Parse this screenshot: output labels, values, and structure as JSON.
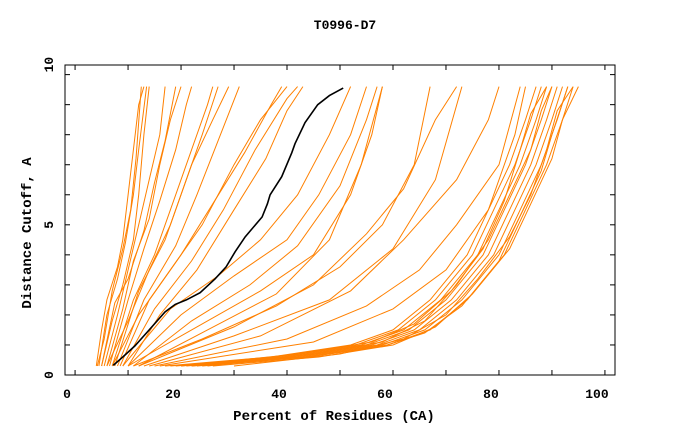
{
  "chart_data": {
    "type": "line",
    "title": "T0996-D7",
    "xlabel": "Percent of Residues (CA)",
    "ylabel": "Distance Cutoff, A",
    "xlim": [
      -1.9,
      101.9
    ],
    "ylim": [
      0,
      10.32
    ],
    "xticks": [
      0,
      20,
      40,
      60,
      80,
      100
    ],
    "xminor": [
      0,
      10,
      20,
      30,
      40,
      50,
      60,
      70,
      80,
      90,
      100
    ],
    "yticks": [
      0,
      5,
      10
    ],
    "yminor": [
      0,
      1,
      2,
      3,
      4,
      5,
      6,
      7,
      8,
      9,
      10
    ],
    "grid": false,
    "colors": {
      "models": "#ff8000",
      "highlight": "#000000"
    },
    "highlight": {
      "name": "highlighted model",
      "points": [
        [
          7.2,
          0.32
        ],
        [
          9,
          0.6
        ],
        [
          11.3,
          0.97
        ],
        [
          14,
          1.5
        ],
        [
          17,
          2.1
        ],
        [
          18.9,
          2.35
        ],
        [
          21,
          2.5
        ],
        [
          23.6,
          2.74
        ],
        [
          26.4,
          3.2
        ],
        [
          28.5,
          3.6
        ],
        [
          30.2,
          4.1
        ],
        [
          32.1,
          4.6
        ],
        [
          35.3,
          5.26
        ],
        [
          36.3,
          5.7
        ],
        [
          36.8,
          6.0
        ],
        [
          39,
          6.6
        ],
        [
          40.9,
          7.4
        ],
        [
          41.5,
          7.7
        ],
        [
          43.4,
          8.4
        ],
        [
          45.8,
          9.0
        ],
        [
          48,
          9.3
        ],
        [
          50.6,
          9.55
        ]
      ]
    },
    "series": [
      [
        [
          4,
          0.3
        ],
        [
          5,
          1.5
        ],
        [
          6,
          2.5
        ],
        [
          8,
          3.6
        ],
        [
          9,
          4.5
        ],
        [
          10,
          6
        ],
        [
          11,
          7.5
        ],
        [
          12,
          9
        ],
        [
          13,
          9.6
        ]
      ],
      [
        [
          4.5,
          0.3
        ],
        [
          6,
          2
        ],
        [
          8,
          3.2
        ],
        [
          9.5,
          4.4
        ],
        [
          11,
          6
        ],
        [
          12,
          7.5
        ],
        [
          13.5,
          9.6
        ]
      ],
      [
        [
          5,
          0.3
        ],
        [
          7,
          1.8
        ],
        [
          9,
          3
        ],
        [
          11,
          4.5
        ],
        [
          12,
          6
        ],
        [
          13,
          8
        ],
        [
          14,
          9.6
        ]
      ],
      [
        [
          5.5,
          0.3
        ],
        [
          8,
          2
        ],
        [
          10,
          3.5
        ],
        [
          12,
          5
        ],
        [
          14,
          6.5
        ],
        [
          16,
          8
        ],
        [
          17,
          9.6
        ]
      ],
      [
        [
          6,
          0.3
        ],
        [
          9,
          2.2
        ],
        [
          11,
          3.8
        ],
        [
          14,
          5.2
        ],
        [
          16,
          7
        ],
        [
          18,
          8.5
        ],
        [
          20,
          9.6
        ]
      ],
      [
        [
          6.5,
          0.3
        ],
        [
          10,
          2.5
        ],
        [
          13,
          4.2
        ],
        [
          16,
          5.8
        ],
        [
          19,
          7.5
        ],
        [
          21,
          9
        ],
        [
          22,
          9.6
        ]
      ],
      [
        [
          7,
          0.3
        ],
        [
          11,
          2.5
        ],
        [
          15,
          4
        ],
        [
          19,
          6
        ],
        [
          22,
          7.5
        ],
        [
          25,
          9
        ],
        [
          26,
          9.6
        ]
      ],
      [
        [
          7.5,
          0.3
        ],
        [
          12,
          2.8
        ],
        [
          17,
          4.5
        ],
        [
          21,
          6.5
        ],
        [
          24,
          8
        ],
        [
          27,
          9.6
        ]
      ],
      [
        [
          6,
          0.3
        ],
        [
          10,
          1.8
        ],
        [
          14,
          3.5
        ],
        [
          18,
          5
        ],
        [
          22,
          7
        ],
        [
          26,
          8.5
        ],
        [
          29,
          9.6
        ]
      ],
      [
        [
          8,
          0.3
        ],
        [
          13,
          2.5
        ],
        [
          19,
          4.3
        ],
        [
          23,
          6
        ],
        [
          27,
          7.8
        ],
        [
          31,
          9.6
        ]
      ],
      [
        [
          8.5,
          0.3
        ],
        [
          14,
          2.5
        ],
        [
          20,
          4
        ],
        [
          26,
          5.7
        ],
        [
          32,
          7.4
        ],
        [
          37,
          9
        ],
        [
          39,
          9.6
        ]
      ],
      [
        [
          9,
          0.3
        ],
        [
          15,
          2.2
        ],
        [
          22,
          3.8
        ],
        [
          28,
          5.5
        ],
        [
          34,
          7.5
        ],
        [
          40,
          9.2
        ],
        [
          42,
          9.6
        ]
      ],
      [
        [
          7,
          0.3
        ],
        [
          12,
          2
        ],
        [
          18,
          3.5
        ],
        [
          24,
          5
        ],
        [
          30,
          7
        ],
        [
          35,
          8.5
        ],
        [
          40,
          9.6
        ]
      ],
      [
        [
          10,
          0.3
        ],
        [
          16,
          2
        ],
        [
          23,
          3.5
        ],
        [
          30,
          5.5
        ],
        [
          36,
          7.2
        ],
        [
          40,
          8.8
        ],
        [
          43,
          9.6
        ]
      ],
      [
        [
          4.2,
          0.3
        ],
        [
          5.5,
          1.2
        ],
        [
          7,
          2.8
        ],
        [
          9,
          4.2
        ],
        [
          10.5,
          5.5
        ],
        [
          11.5,
          7.2
        ],
        [
          12.5,
          9.6
        ]
      ],
      [
        [
          5,
          0.3
        ],
        [
          7.5,
          2.4
        ],
        [
          10,
          3.2
        ],
        [
          13,
          4.8
        ],
        [
          15,
          6.4
        ],
        [
          17,
          7.8
        ],
        [
          19,
          9.6
        ]
      ],
      [
        [
          9,
          0.3
        ],
        [
          18,
          2.2
        ],
        [
          27,
          3.3
        ],
        [
          35,
          4.5
        ],
        [
          42,
          6
        ],
        [
          48,
          8
        ],
        [
          52,
          9.6
        ]
      ],
      [
        [
          10,
          0.3
        ],
        [
          20,
          2
        ],
        [
          30,
          3.3
        ],
        [
          40,
          4.5
        ],
        [
          46,
          6
        ],
        [
          52,
          8
        ],
        [
          55,
          9.6
        ]
      ],
      [
        [
          11,
          0.3
        ],
        [
          22,
          1.8
        ],
        [
          33,
          3
        ],
        [
          42,
          4.3
        ],
        [
          50,
          6.3
        ],
        [
          55,
          8.5
        ],
        [
          57,
          9.6
        ]
      ],
      [
        [
          10,
          0.3
        ],
        [
          22,
          1.5
        ],
        [
          35,
          2.8
        ],
        [
          45,
          4
        ],
        [
          52,
          6
        ],
        [
          56,
          8
        ],
        [
          58,
          9.6
        ]
      ],
      [
        [
          12,
          0.3
        ],
        [
          25,
          1.5
        ],
        [
          38,
          2.7
        ],
        [
          48,
          4.5
        ],
        [
          54,
          7
        ],
        [
          58,
          9.6
        ]
      ],
      [
        [
          11,
          0.3
        ],
        [
          24,
          1.2
        ],
        [
          38,
          2.3
        ],
        [
          50,
          3.6
        ],
        [
          58,
          5
        ],
        [
          64,
          7
        ],
        [
          67,
          9.6
        ]
      ],
      [
        [
          12,
          0.3
        ],
        [
          30,
          1.6
        ],
        [
          45,
          3
        ],
        [
          55,
          4.7
        ],
        [
          62,
          6.2
        ],
        [
          68,
          8.5
        ],
        [
          72,
          9.6
        ]
      ],
      [
        [
          13,
          0.3
        ],
        [
          30,
          1.3
        ],
        [
          48,
          2.5
        ],
        [
          60,
          4.2
        ],
        [
          68,
          6.5
        ],
        [
          73,
          9.6
        ]
      ],
      [
        [
          15,
          0.3
        ],
        [
          40,
          1.2
        ],
        [
          55,
          2.3
        ],
        [
          65,
          3.5
        ],
        [
          72,
          5
        ],
        [
          80,
          7
        ],
        [
          84,
          9.6
        ]
      ],
      [
        [
          16,
          0.3
        ],
        [
          45,
          1.1
        ],
        [
          60,
          2.2
        ],
        [
          70,
          3.5
        ],
        [
          78,
          5.5
        ],
        [
          83,
          8
        ],
        [
          85,
          9.6
        ]
      ],
      [
        [
          14,
          0.3
        ],
        [
          35,
          1.3
        ],
        [
          52,
          2.8
        ],
        [
          62,
          4.5
        ],
        [
          72,
          6.5
        ],
        [
          78,
          8.5
        ],
        [
          80,
          9.6
        ]
      ],
      [
        [
          17,
          0.3
        ],
        [
          37,
          0.6
        ],
        [
          52,
          1
        ],
        [
          60,
          1.5
        ],
        [
          67,
          2.5
        ],
        [
          74,
          4
        ],
        [
          78,
          5.5
        ],
        [
          82,
          7
        ],
        [
          85,
          8.5
        ],
        [
          87,
          9.6
        ]
      ],
      [
        [
          18,
          0.3
        ],
        [
          38,
          0.6
        ],
        [
          53,
          1
        ],
        [
          61,
          1.5
        ],
        [
          68,
          2.5
        ],
        [
          75,
          4
        ],
        [
          79,
          5.5
        ],
        [
          83,
          7
        ],
        [
          86,
          8.5
        ],
        [
          88,
          9.6
        ]
      ],
      [
        [
          19,
          0.3
        ],
        [
          39,
          0.6
        ],
        [
          54,
          1
        ],
        [
          62,
          1.5
        ],
        [
          69,
          2.5
        ],
        [
          76,
          4
        ],
        [
          80,
          5.5
        ],
        [
          84,
          7
        ],
        [
          87,
          8.5
        ],
        [
          89,
          9.6
        ]
      ],
      [
        [
          20,
          0.3
        ],
        [
          40,
          0.6
        ],
        [
          55,
          1
        ],
        [
          63,
          1.5
        ],
        [
          70,
          2.5
        ],
        [
          77,
          4
        ],
        [
          81,
          5.5
        ],
        [
          85,
          7
        ],
        [
          88,
          8.5
        ],
        [
          90,
          9.6
        ]
      ],
      [
        [
          21,
          0.3
        ],
        [
          41,
          0.6
        ],
        [
          56,
          1
        ],
        [
          64,
          1.5
        ],
        [
          71,
          2.5
        ],
        [
          78,
          4
        ],
        [
          82,
          5.5
        ],
        [
          86,
          7
        ],
        [
          89,
          8.5
        ],
        [
          91,
          9.6
        ]
      ],
      [
        [
          22,
          0.3
        ],
        [
          42,
          0.6
        ],
        [
          57,
          1
        ],
        [
          65,
          1.5
        ],
        [
          72,
          2.5
        ],
        [
          79,
          4
        ],
        [
          83,
          5.5
        ],
        [
          87,
          7
        ],
        [
          90,
          8.5
        ],
        [
          92,
          9.6
        ]
      ],
      [
        [
          23,
          0.3
        ],
        [
          43,
          0.6
        ],
        [
          58,
          1
        ],
        [
          66,
          1.5
        ],
        [
          73,
          2.5
        ],
        [
          80,
          4
        ],
        [
          84,
          5.5
        ],
        [
          88,
          7
        ],
        [
          91,
          8.5
        ],
        [
          93,
          9.6
        ]
      ],
      [
        [
          24,
          0.3
        ],
        [
          44,
          0.6
        ],
        [
          59,
          1
        ],
        [
          67,
          1.5
        ],
        [
          74,
          2.5
        ],
        [
          81,
          4
        ],
        [
          85,
          5.5
        ],
        [
          89,
          7
        ],
        [
          92,
          8.5
        ],
        [
          94,
          9.6
        ]
      ],
      [
        [
          26,
          0.3
        ],
        [
          46,
          0.6
        ],
        [
          60,
          1
        ],
        [
          68,
          1.6
        ],
        [
          75,
          2.7
        ],
        [
          82,
          4.2
        ],
        [
          86,
          5.7
        ],
        [
          90,
          7.2
        ],
        [
          92,
          8.5
        ],
        [
          95,
          9.6
        ]
      ],
      [
        [
          20,
          0.3
        ],
        [
          42,
          0.7
        ],
        [
          56,
          1.1
        ],
        [
          64,
          1.7
        ],
        [
          71,
          2.8
        ],
        [
          77,
          4.2
        ],
        [
          81,
          5.8
        ],
        [
          84,
          7.5
        ],
        [
          86,
          8.7
        ],
        [
          89,
          9.6
        ]
      ],
      [
        [
          25,
          0.3
        ],
        [
          45,
          0.7
        ],
        [
          58,
          1.1
        ],
        [
          66,
          1.8
        ],
        [
          72,
          3
        ],
        [
          78,
          4.5
        ],
        [
          82,
          6
        ],
        [
          86,
          7.5
        ],
        [
          88,
          8.8
        ],
        [
          90,
          9.6
        ]
      ],
      [
        [
          22,
          0.3
        ],
        [
          44,
          0.6
        ],
        [
          58,
          0.95
        ],
        [
          66,
          1.4
        ],
        [
          73,
          2.3
        ],
        [
          80,
          3.8
        ],
        [
          84,
          5.3
        ],
        [
          88,
          6.8
        ],
        [
          90,
          8
        ],
        [
          93,
          9.6
        ]
      ],
      [
        [
          30,
          0.3
        ],
        [
          50,
          0.7
        ],
        [
          62,
          1.2
        ],
        [
          70,
          2
        ],
        [
          76,
          3.2
        ],
        [
          82,
          4.6
        ],
        [
          86,
          6
        ],
        [
          89,
          7.5
        ],
        [
          91,
          8.8
        ],
        [
          94,
          9.6
        ]
      ]
    ]
  }
}
